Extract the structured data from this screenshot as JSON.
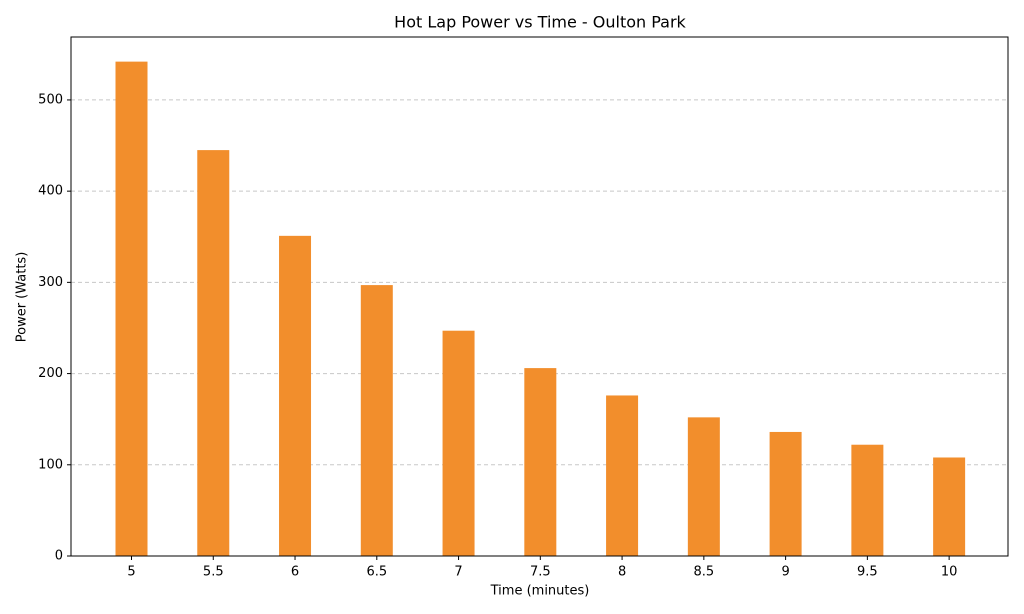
{
  "chart_data": {
    "type": "bar",
    "title": "Hot Lap Power vs Time - Oulton Park",
    "x_label": "Time (minutes)",
    "y_label": "Power (Watts)",
    "x": [
      5,
      5.5,
      6,
      6.5,
      7,
      7.5,
      8,
      8.5,
      9,
      9.5,
      10
    ],
    "values": [
      542,
      445,
      351,
      297,
      247,
      206,
      176,
      152,
      136,
      122,
      108
    ],
    "color": "#f28e2c",
    "xlim": [
      4.63,
      10.36
    ],
    "xticks": [
      5,
      5.5,
      6,
      6.5,
      7,
      7.5,
      8,
      8.5,
      9,
      9.5,
      10
    ],
    "ylim": [
      0,
      569
    ],
    "yticks": [
      0,
      100,
      200,
      300,
      400,
      500
    ],
    "grid": true
  }
}
